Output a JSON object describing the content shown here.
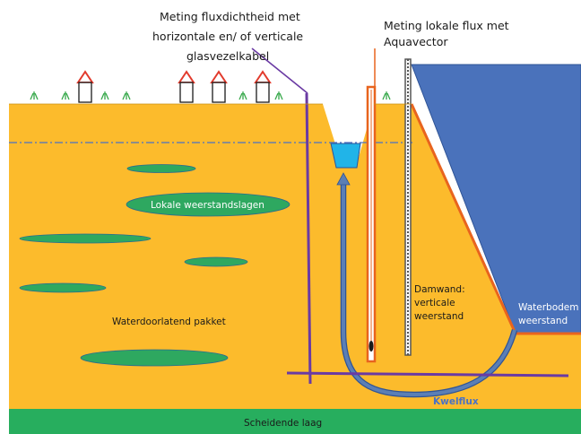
{
  "labels": {
    "fiber_line1": "Meting fluxdichtheid met",
    "fiber_line2": "horizontale en/ of verticale",
    "fiber_line3": "glasvezelkabel",
    "aquavector_line1": "Meting lokale flux met",
    "aquavector_line2": "Aquavector",
    "local_resistance": "Lokale weerstandslagen",
    "aquifer": "Waterdoorlatend pakket",
    "sheetpile_line1": "Damwand:",
    "sheetpile_line2": "verticale",
    "sheetpile_line3": "weerstand",
    "bed_line1": "Waterbodem",
    "bed_line2": "weerstand",
    "seepage": "Kwelflux",
    "separating_layer": "Scheidende laag"
  },
  "colors": {
    "aquifer": "#fcbb2c",
    "separating_layer": "#27ae5e",
    "lens": "#2ea860",
    "water": "#4a72bb",
    "ditch": "#21b4e8",
    "fiber": "#6a3aa3",
    "flow": "#5b7fb5",
    "aquavector": "#e8641e",
    "sheetpile": "#555555",
    "house_roof": "#e23a2c"
  }
}
